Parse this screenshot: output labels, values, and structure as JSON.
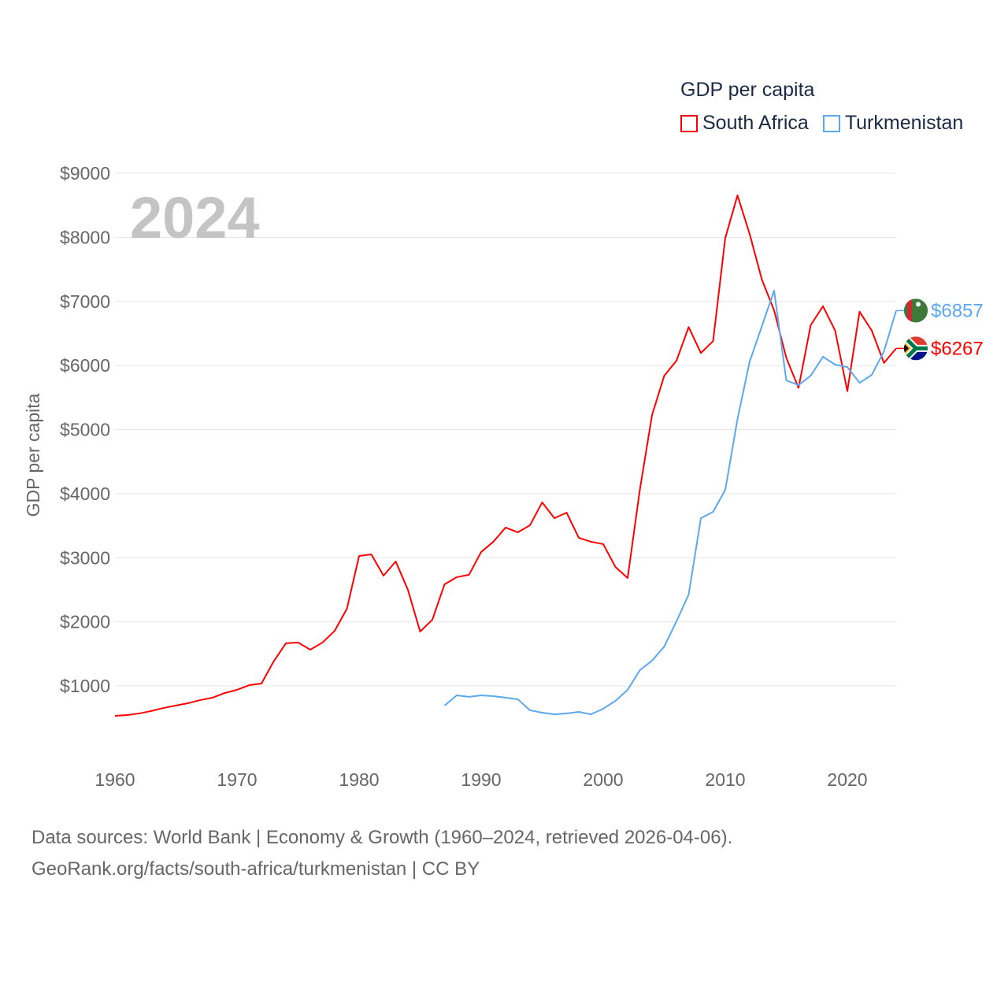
{
  "legend": {
    "title": "GDP per capita"
  },
  "footer": {
    "line1": "Data sources: World Bank | Economy & Growth (1960–2024, retrieved 2026-04-06).",
    "line2": "GeoRank.org/facts/south-africa/turkmenistan | CC BY"
  },
  "chart_data": {
    "type": "line",
    "year_label": "2024",
    "ylabel": "GDP per capita",
    "xlabel": "",
    "xlim": [
      1960,
      2024
    ],
    "ylim": [
      0,
      9000
    ],
    "x_ticks": [
      1960,
      1970,
      1980,
      1990,
      2000,
      2010,
      2020
    ],
    "y_ticks": [
      1000,
      2000,
      3000,
      4000,
      5000,
      6000,
      7000,
      8000,
      9000
    ],
    "y_tick_labels": [
      "$1000",
      "$2000",
      "$3000",
      "$4000",
      "$5000",
      "$6000",
      "$7000",
      "$8000",
      "$9000"
    ],
    "grid": true,
    "legend_placement": "top-right",
    "series": [
      {
        "name": "South Africa",
        "color": "#ff0000",
        "flag": "south-africa-flag",
        "end_label": "$6267",
        "start_year": 1960,
        "values": [
          533,
          545,
          571,
          610,
          657,
          695,
          731,
          780,
          817,
          890,
          939,
          1012,
          1037,
          1382,
          1665,
          1677,
          1566,
          1677,
          1860,
          2205,
          3028,
          3053,
          2721,
          2942,
          2500,
          1848,
          2033,
          2586,
          2697,
          2734,
          3090,
          3250,
          3471,
          3397,
          3508,
          3864,
          3618,
          3704,
          3311,
          3250,
          3213,
          2856,
          2684,
          4060,
          5227,
          5841,
          6075,
          6600,
          6195,
          6380,
          7990,
          8655,
          8050,
          7340,
          6860,
          6120,
          5650,
          6630,
          6925,
          6545,
          5600,
          6840,
          6545,
          6040,
          6267
        ]
      },
      {
        "name": "Turkmenistan",
        "color": "#5ba8ee",
        "flag": "turkmenistan-flag",
        "end_label": "$6857",
        "start_year": 1987,
        "values": [
          693,
          853,
          830,
          853,
          840,
          817,
          792,
          620,
          583,
          557,
          571,
          595,
          557,
          645,
          767,
          939,
          1246,
          1394,
          1615,
          2008,
          2426,
          3618,
          3716,
          4060,
          5165,
          6063,
          6615,
          7168,
          5767,
          5694,
          5841,
          6137,
          6014,
          5976,
          5730,
          5853,
          6222,
          6857
        ]
      }
    ]
  }
}
